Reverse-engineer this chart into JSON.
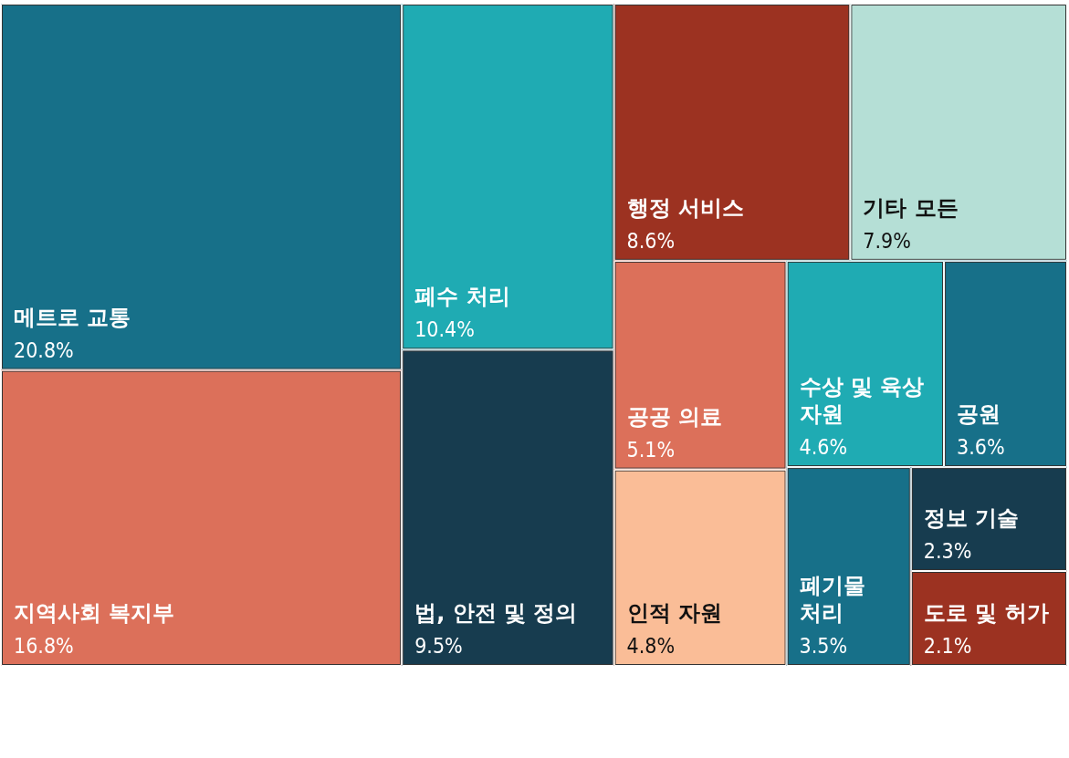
{
  "chart_data": {
    "type": "other",
    "categories": [
      "메트로 교통",
      "지역사회 복지부",
      "폐수 처리",
      "법, 안전 및 정의",
      "행정 서비스",
      "기타 모든",
      "공공 의료",
      "인적 자원",
      "수상 및 육상 자원",
      "공원",
      "폐기물 처리",
      "정보 기술",
      "도로 및 허가"
    ],
    "values": [
      20.8,
      16.8,
      10.4,
      9.5,
      8.6,
      7.9,
      5.1,
      4.8,
      4.6,
      3.6,
      3.5,
      2.3,
      2.1
    ],
    "value_labels": [
      "20.8%",
      "16.8%",
      "10.4%",
      "9.5%",
      "8.6%",
      "7.9%",
      "5.1%",
      "4.8%",
      "4.6%",
      "3.6%",
      "3.5%",
      "2.3%",
      "2.1%"
    ],
    "colors": [
      "#177089",
      "#dc705a",
      "#1fabb3",
      "#173c4f",
      "#9c3221",
      "#b5dfd6",
      "#dc705a",
      "#fabd97",
      "#1fabb3",
      "#177089",
      "#177089",
      "#173c4f",
      "#9c3221"
    ]
  }
}
